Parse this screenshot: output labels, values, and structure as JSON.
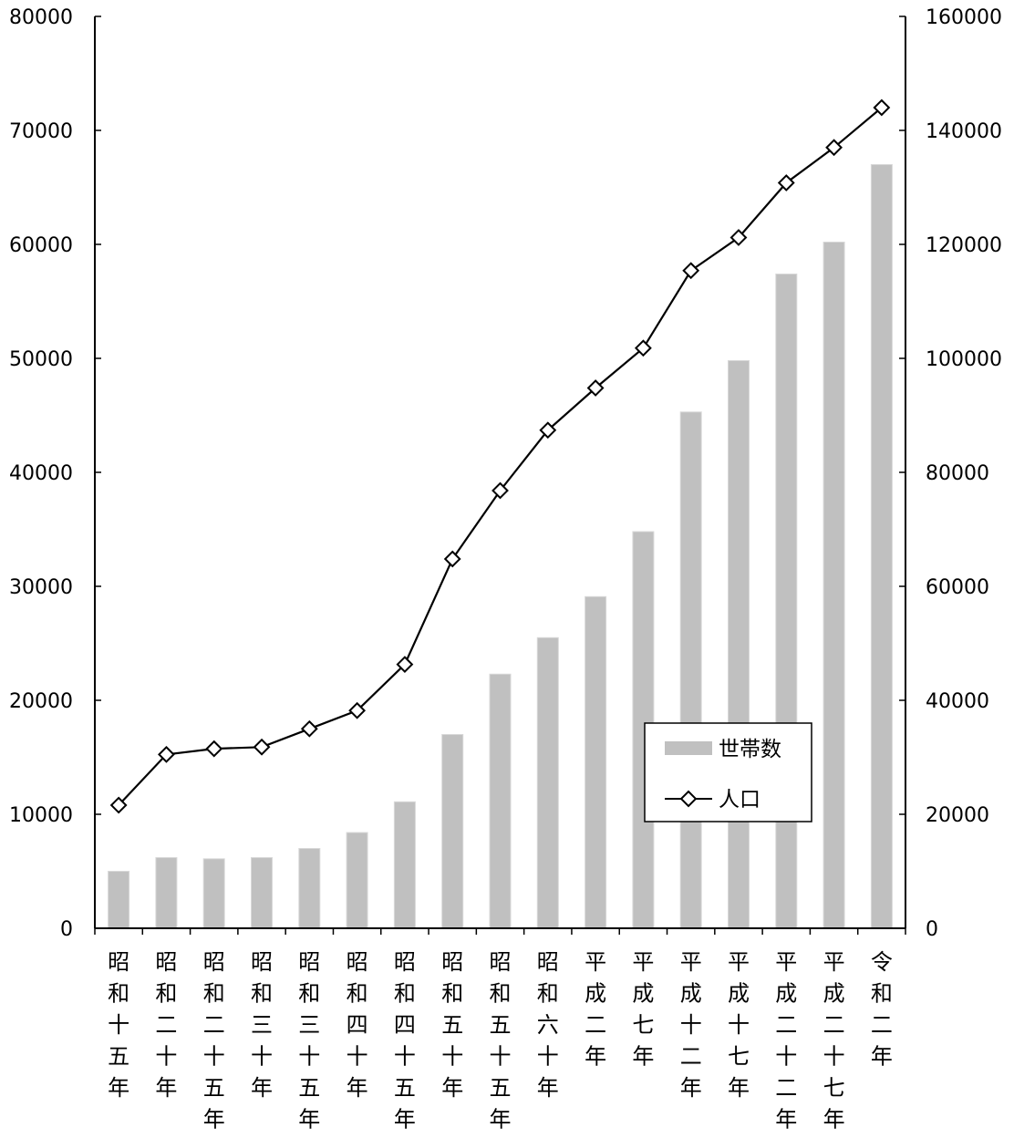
{
  "chart_data": {
    "type": "bar",
    "categories": [
      "昭和十五年",
      "昭和二十年",
      "昭和二十五年",
      "昭和三十年",
      "昭和三十五年",
      "昭和四十年",
      "昭和四十五年",
      "昭和五十年",
      "昭和五十五年",
      "昭和六十年",
      "平成二年",
      "平成七年",
      "平成十二年",
      "平成十七年",
      "平成二十二年",
      "平成二十七年",
      "令和二年"
    ],
    "series": [
      {
        "name": "世帯数",
        "kind": "bar",
        "axis": "left",
        "color": "#c0c0c0",
        "values": [
          5000,
          6200,
          6100,
          6200,
          7000,
          8400,
          11100,
          17000,
          22300,
          25500,
          29100,
          34800,
          45300,
          49800,
          57400,
          60200,
          67000
        ]
      },
      {
        "name": "人口",
        "kind": "line",
        "axis": "right",
        "color": "#000000",
        "marker": "diamond",
        "values": [
          21600,
          30500,
          31500,
          31800,
          35000,
          38200,
          46300,
          64800,
          76800,
          87400,
          94800,
          101800,
          115400,
          121200,
          130800,
          137000,
          144000
        ]
      }
    ],
    "ylim_left": [
      0,
      80000
    ],
    "ylim_right": [
      0,
      160000
    ],
    "yticks_left": [
      "0",
      "10000",
      "20000",
      "30000",
      "40000",
      "50000",
      "60000",
      "70000",
      "80000"
    ],
    "yticks_right": [
      "0",
      "20000",
      "40000",
      "60000",
      "80000",
      "100000",
      "120000",
      "140000",
      "160000"
    ],
    "grid": false,
    "legend_position": "lower-right"
  }
}
